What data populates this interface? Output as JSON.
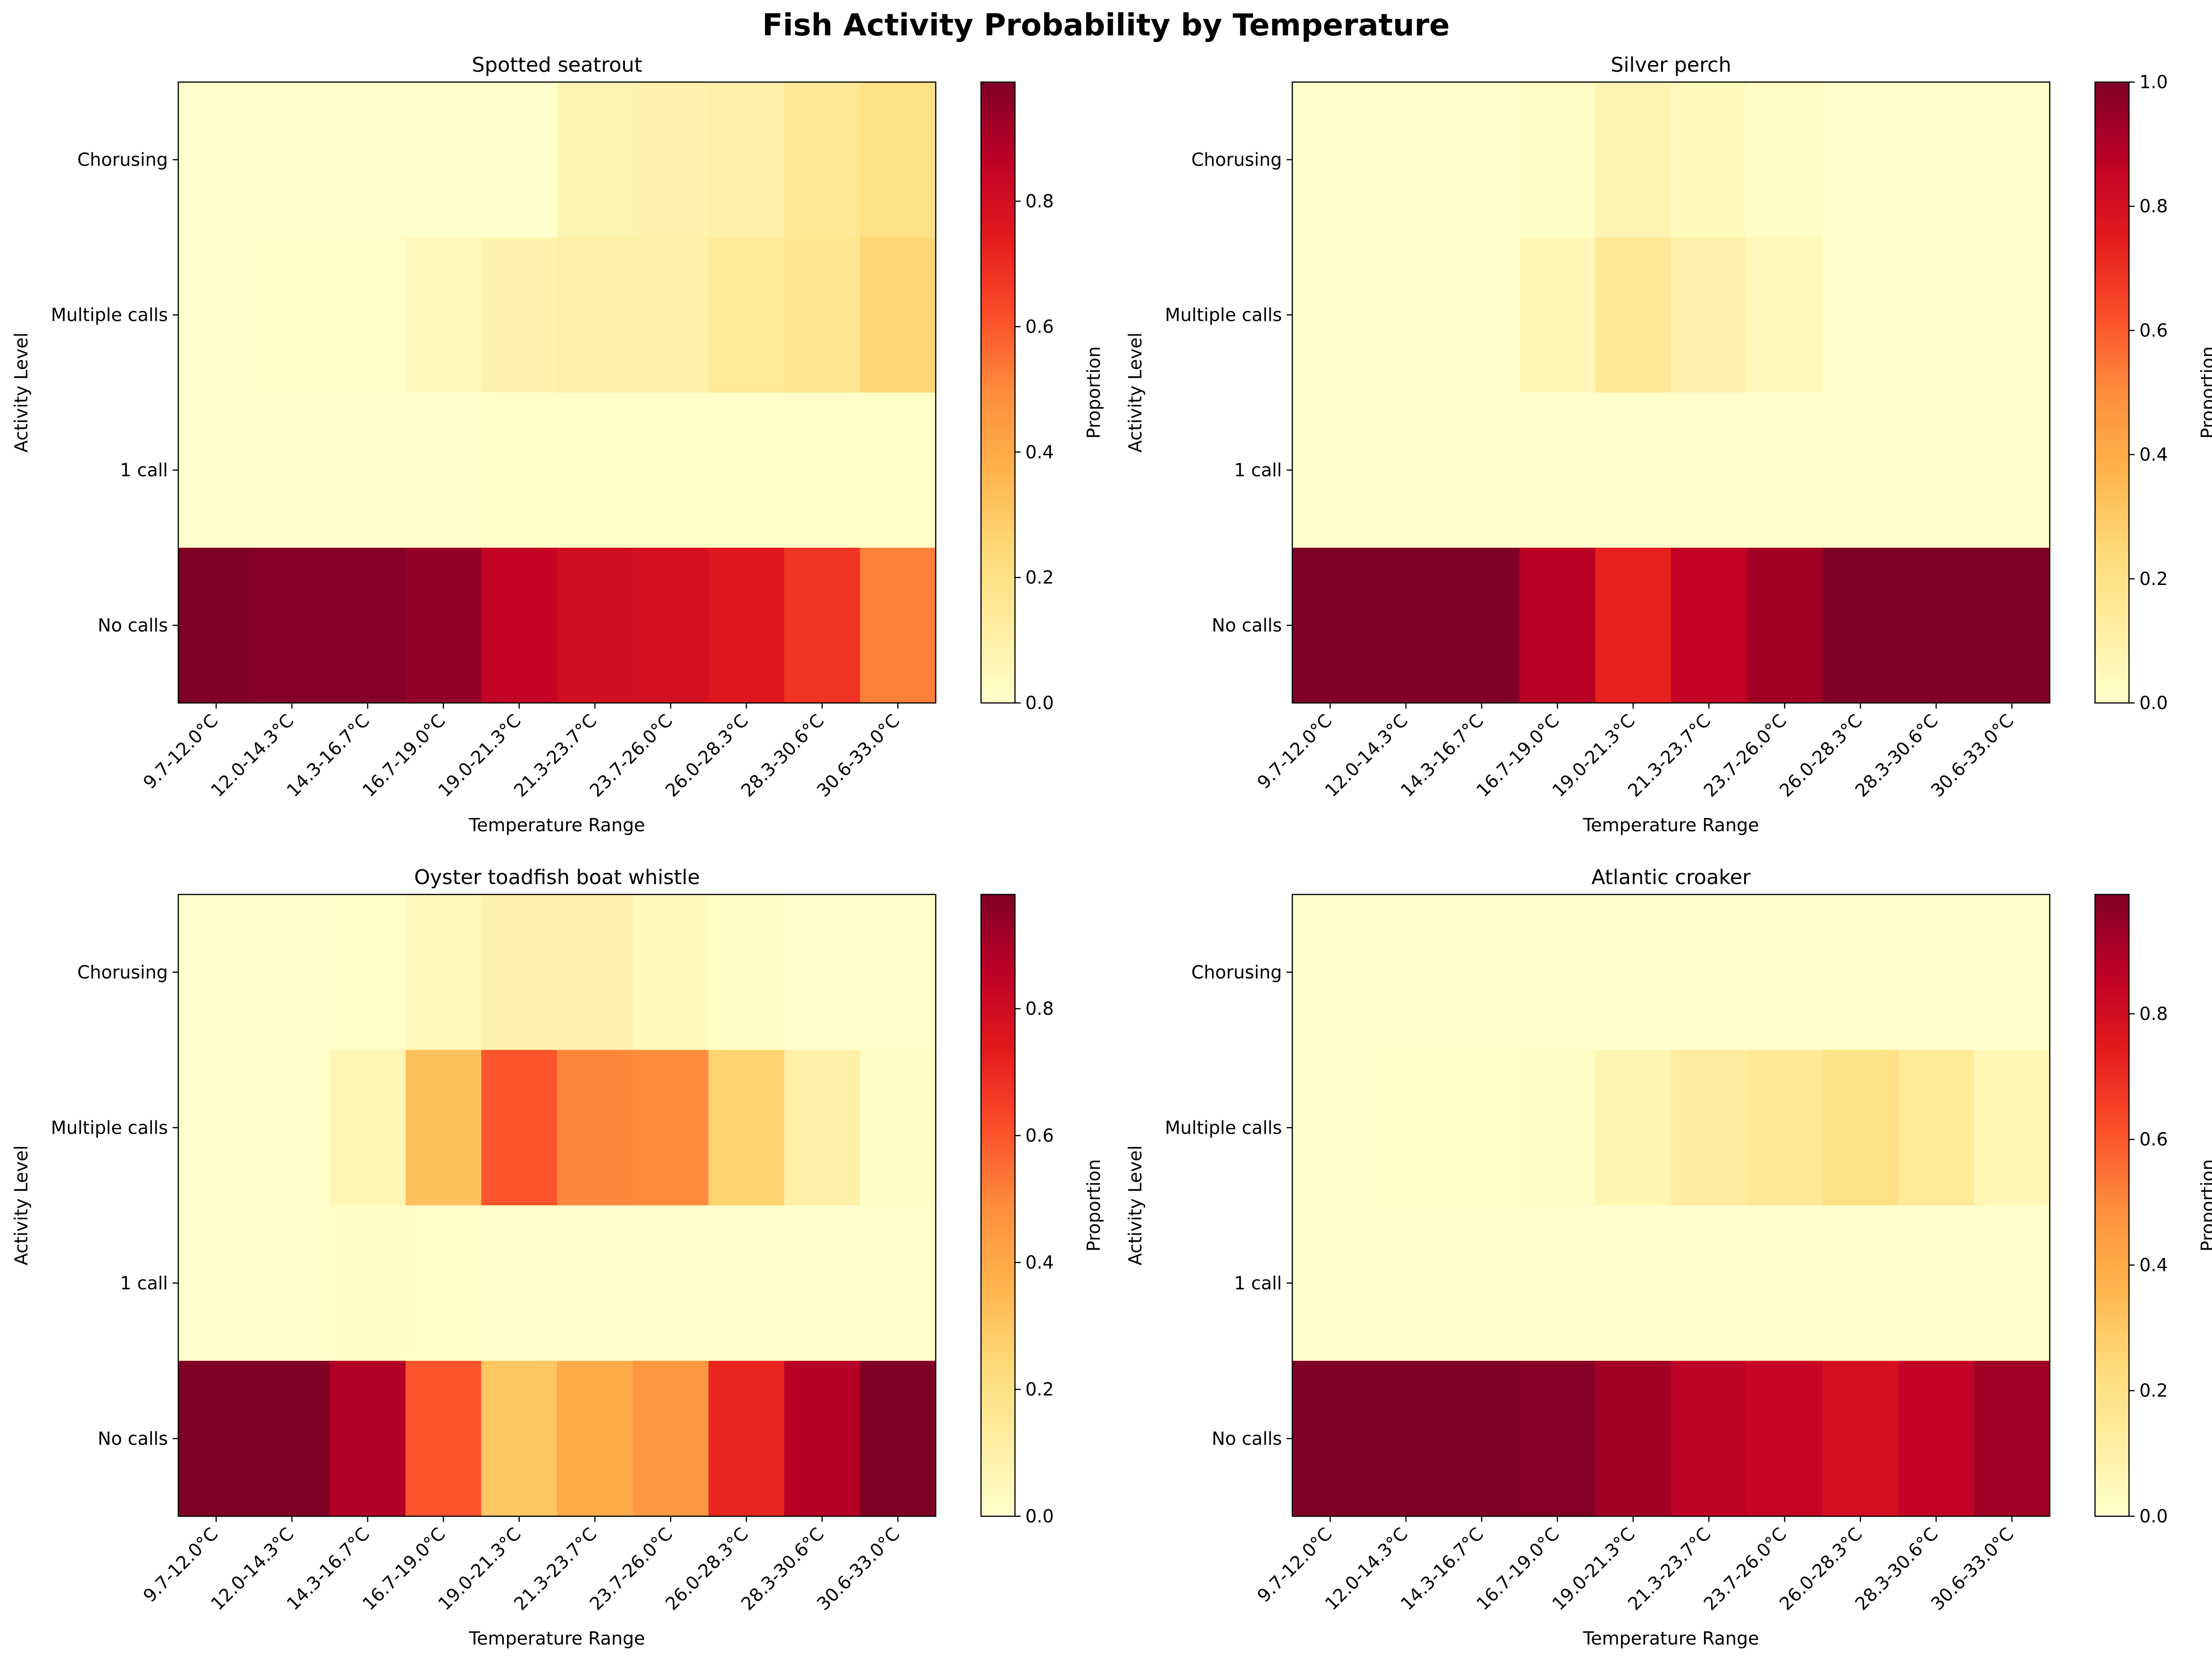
{
  "figure": {
    "title": "Fish Activity Probability by Temperature",
    "colormap": [
      "#ffffcc",
      "#ffeda0",
      "#fed976",
      "#feb24c",
      "#fd8d3c",
      "#fc4e2a",
      "#e31a1c",
      "#bd0026",
      "#800026"
    ]
  },
  "chart_data": [
    {
      "type": "heatmap",
      "title": "Spotted seatrout",
      "xlabel": "Temperature Range",
      "ylabel": "Activity Level",
      "colorbar_label": "Proportion",
      "colorbar_ticks": [
        "0.0",
        "0.2",
        "0.4",
        "0.6",
        "0.8"
      ],
      "colorbar_range": [
        0,
        0.99
      ],
      "x_categories": [
        "9.7-12.0°C",
        "12.0-14.3°C",
        "14.3-16.7°C",
        "16.7-19.0°C",
        "19.0-21.3°C",
        "21.3-23.7°C",
        "23.7-26.0°C",
        "26.0-28.3°C",
        "28.3-30.6°C",
        "30.6-33.0°C"
      ],
      "y_categories": [
        "Chorusing",
        "Multiple calls",
        "1 call",
        "No calls"
      ],
      "values": [
        [
          0.0,
          0.0,
          0.0,
          0.0,
          0.0,
          0.07,
          0.09,
          0.1,
          0.15,
          0.2
        ],
        [
          0.0,
          0.01,
          0.01,
          0.04,
          0.09,
          0.1,
          0.1,
          0.14,
          0.17,
          0.25
        ],
        [
          0.0,
          0.0,
          0.0,
          0.0,
          0.01,
          0.01,
          0.01,
          0.01,
          0.01,
          0.01
        ],
        [
          0.99,
          0.98,
          0.98,
          0.95,
          0.85,
          0.8,
          0.79,
          0.76,
          0.68,
          0.52
        ]
      ]
    },
    {
      "type": "heatmap",
      "title": "Silver perch",
      "xlabel": "Temperature Range",
      "ylabel": "Activity Level",
      "colorbar_label": "Proportion",
      "colorbar_ticks": [
        "0.0",
        "0.2",
        "0.4",
        "0.6",
        "0.8",
        "1.0"
      ],
      "colorbar_range": [
        0,
        1.0
      ],
      "x_categories": [
        "9.7-12.0°C",
        "12.0-14.3°C",
        "14.3-16.7°C",
        "16.7-19.0°C",
        "19.0-21.3°C",
        "21.3-23.7°C",
        "23.7-26.0°C",
        "26.0-28.3°C",
        "28.3-30.6°C",
        "30.6-33.0°C"
      ],
      "y_categories": [
        "Chorusing",
        "Multiple calls",
        "1 call",
        "No calls"
      ],
      "values": [
        [
          0.0,
          0.0,
          0.0,
          0.02,
          0.07,
          0.04,
          0.02,
          0.0,
          0.0,
          0.0
        ],
        [
          0.0,
          0.0,
          0.0,
          0.06,
          0.15,
          0.09,
          0.05,
          0.0,
          0.0,
          0.0
        ],
        [
          0.0,
          0.0,
          0.0,
          0.0,
          0.0,
          0.0,
          0.0,
          0.0,
          0.0,
          0.0
        ],
        [
          1.0,
          1.0,
          1.0,
          0.88,
          0.73,
          0.86,
          0.93,
          1.0,
          1.0,
          1.0
        ]
      ]
    },
    {
      "type": "heatmap",
      "title": "Oyster toadfish boat whistle",
      "xlabel": "Temperature Range",
      "ylabel": "Activity Level",
      "colorbar_label": "Proportion",
      "colorbar_ticks": [
        "0.0",
        "0.2",
        "0.4",
        "0.6",
        "0.8"
      ],
      "colorbar_range": [
        0,
        0.98
      ],
      "x_categories": [
        "9.7-12.0°C",
        "12.0-14.3°C",
        "14.3-16.7°C",
        "16.7-19.0°C",
        "19.0-21.3°C",
        "21.3-23.7°C",
        "23.7-26.0°C",
        "26.0-28.3°C",
        "28.3-30.6°C",
        "30.6-33.0°C"
      ],
      "y_categories": [
        "Chorusing",
        "Multiple calls",
        "1 call",
        "No calls"
      ],
      "values": [
        [
          0.0,
          0.0,
          0.01,
          0.05,
          0.09,
          0.09,
          0.04,
          0.02,
          0.0,
          0.0
        ],
        [
          0.0,
          0.0,
          0.06,
          0.32,
          0.6,
          0.5,
          0.49,
          0.26,
          0.1,
          0.02
        ],
        [
          0.0,
          0.0,
          0.02,
          0.01,
          0.0,
          0.0,
          0.0,
          0.0,
          0.0,
          0.0
        ],
        [
          0.98,
          0.98,
          0.88,
          0.6,
          0.3,
          0.39,
          0.46,
          0.71,
          0.87,
          0.98
        ]
      ]
    },
    {
      "type": "heatmap",
      "title": "Atlantic croaker",
      "xlabel": "Temperature Range",
      "ylabel": "Activity Level",
      "colorbar_label": "Proportion",
      "colorbar_ticks": [
        "0.0",
        "0.2",
        "0.4",
        "0.6",
        "0.8"
      ],
      "colorbar_range": [
        0,
        0.99
      ],
      "x_categories": [
        "9.7-12.0°C",
        "12.0-14.3°C",
        "14.3-16.7°C",
        "16.7-19.0°C",
        "19.0-21.3°C",
        "21.3-23.7°C",
        "23.7-26.0°C",
        "26.0-28.3°C",
        "28.3-30.6°C",
        "30.6-33.0°C"
      ],
      "y_categories": [
        "Chorusing",
        "Multiple calls",
        "1 call",
        "No calls"
      ],
      "values": [
        [
          0.0,
          0.0,
          0.0,
          0.0,
          0.0,
          0.0,
          0.0,
          0.0,
          0.0,
          0.0
        ],
        [
          0.0,
          0.01,
          0.01,
          0.02,
          0.07,
          0.13,
          0.15,
          0.2,
          0.14,
          0.06
        ],
        [
          0.0,
          0.0,
          0.0,
          0.0,
          0.0,
          0.0,
          0.0,
          0.0,
          0.0,
          0.0
        ],
        [
          0.99,
          0.99,
          0.99,
          0.98,
          0.92,
          0.86,
          0.84,
          0.79,
          0.85,
          0.93
        ]
      ]
    }
  ]
}
